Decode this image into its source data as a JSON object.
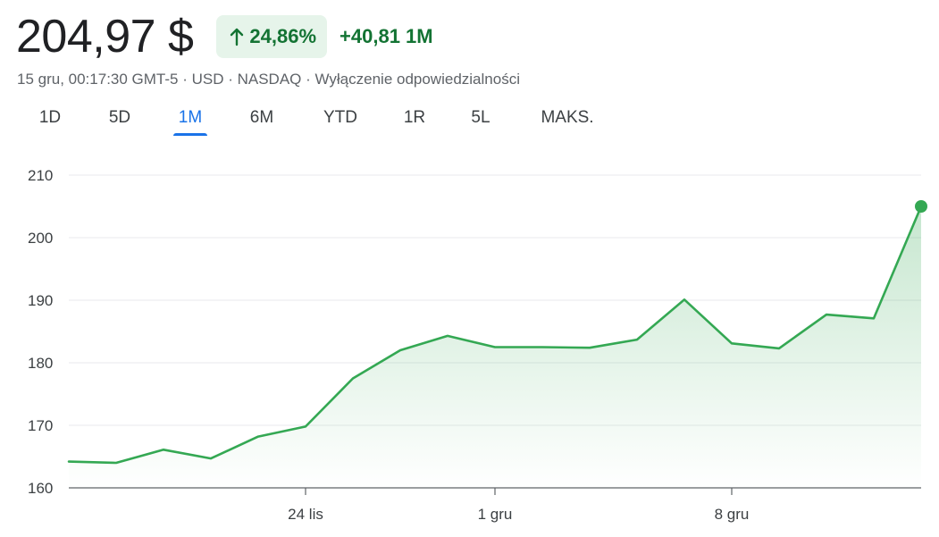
{
  "header": {
    "price": "204,97 $",
    "change_percent": "24,86%",
    "change_abs": "+40,81 1M",
    "meta": "15 gru, 00:17:30 GMT-5 · USD · NASDAQ · Wyłączenie odpowiedzialności"
  },
  "tabs": [
    {
      "label": "1D",
      "active": false
    },
    {
      "label": "5D",
      "active": false
    },
    {
      "label": "1M",
      "active": true
    },
    {
      "label": "6M",
      "active": false
    },
    {
      "label": "YTD",
      "active": false
    },
    {
      "label": "1R",
      "active": false
    },
    {
      "label": "5L",
      "active": false
    },
    {
      "label": "MAKS.",
      "active": false
    }
  ],
  "colors": {
    "line": "#34a853",
    "positive_text": "#137333",
    "pill_bg": "#e6f4ea",
    "active_tab": "#1a73e8",
    "grid": "#e8eaed",
    "axis": "#5f6368"
  },
  "chart_data": {
    "type": "area",
    "ylim": [
      160,
      210
    ],
    "yticks": [
      160,
      170,
      180,
      190,
      200,
      210
    ],
    "x_tick_labels": [
      {
        "label": "24 lis",
        "index": 5
      },
      {
        "label": "1 gru",
        "index": 9
      },
      {
        "label": "8 gru",
        "index": 14
      }
    ],
    "values": [
      164.2,
      164.0,
      166.1,
      164.7,
      168.2,
      169.8,
      177.5,
      182.0,
      184.3,
      182.5,
      182.5,
      182.4,
      183.7,
      190.1,
      183.1,
      182.3,
      187.7,
      187.1,
      205.0
    ],
    "last_point_marker": true,
    "grid": true
  }
}
